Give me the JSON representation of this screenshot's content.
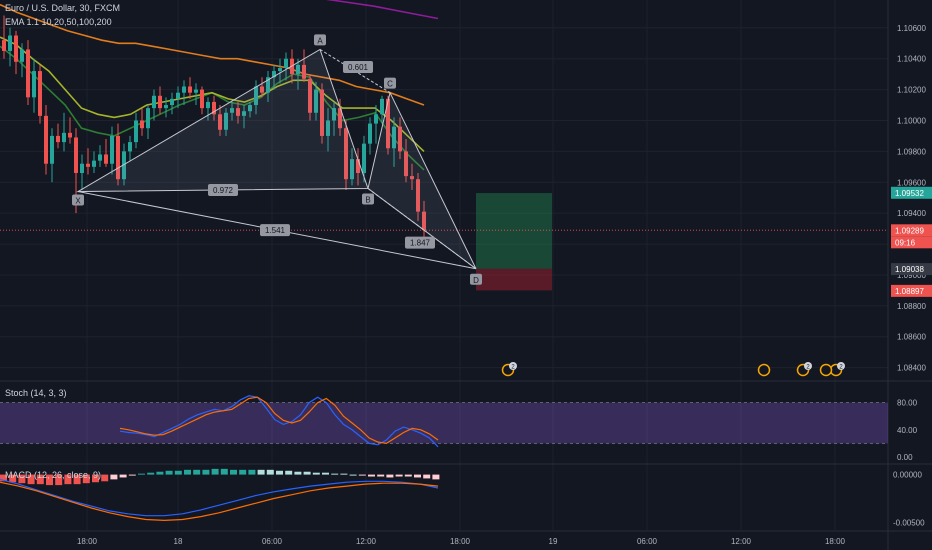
{
  "header": {
    "symbol": "Euro / U.S. Dollar, 30, FXCM",
    "indicator": "EMA 1.1 10,20,50,100,200"
  },
  "chart_data": [
    {
      "type": "candlestick",
      "title": "Euro / U.S. Dollar, 30, FXCM",
      "ylim": [
        1.0832,
        1.1078
      ],
      "y_ticks": [
        "1.10600",
        "1.10400",
        "1.10200",
        "1.10000",
        "1.09800",
        "1.09600",
        "1.09400",
        "1.09200",
        "1.09000",
        "1.08800",
        "1.08600",
        "1.08400"
      ],
      "x_ticks": [
        "18:00",
        "18",
        "06:00",
        "12:00",
        "18:00",
        "19",
        "06:00",
        "12:00",
        "18:00"
      ],
      "candles": [
        [
          1.1052,
          1.1068,
          1.104,
          1.1045
        ],
        [
          1.1045,
          1.106,
          1.1035,
          1.1055
        ],
        [
          1.1055,
          1.1058,
          1.103,
          1.1038
        ],
        [
          1.1038,
          1.105,
          1.1028,
          1.1046
        ],
        [
          1.1046,
          1.1052,
          1.101,
          1.1015
        ],
        [
          1.1015,
          1.104,
          1.1005,
          1.1032
        ],
        [
          1.1032,
          1.1036,
          1.0998,
          1.1003
        ],
        [
          1.1003,
          1.101,
          1.0965,
          1.0972
        ],
        [
          1.0972,
          1.0995,
          1.096,
          1.099
        ],
        [
          1.099,
          1.0998,
          1.0982,
          1.0986
        ],
        [
          1.0986,
          1.1005,
          1.098,
          1.0992
        ],
        [
          1.0992,
          1.1002,
          1.0985,
          1.0989
        ],
        [
          1.0989,
          1.0995,
          1.094,
          1.0966
        ],
        [
          1.0966,
          1.0978,
          1.0955,
          1.0972
        ],
        [
          1.0972,
          1.0982,
          1.0965,
          1.097
        ],
        [
          1.097,
          1.098,
          1.0966,
          1.0974
        ],
        [
          1.0974,
          1.0984,
          1.097,
          1.0978
        ],
        [
          1.0978,
          1.0988,
          1.097,
          1.0972
        ],
        [
          1.0972,
          1.0996,
          1.0965,
          1.099
        ],
        [
          1.099,
          1.0998,
          1.0958,
          1.0962
        ],
        [
          1.0962,
          1.0985,
          1.0958,
          1.098
        ],
        [
          1.098,
          1.099,
          1.0974,
          1.0986
        ],
        [
          1.0986,
          1.1005,
          1.0982,
          1.1
        ],
        [
          1.1,
          1.1008,
          1.099,
          1.0995
        ],
        [
          1.0995,
          1.101,
          1.0988,
          1.1008
        ],
        [
          1.1008,
          1.102,
          1.1,
          1.1016
        ],
        [
          1.1016,
          1.1022,
          1.1004,
          1.1008
        ],
        [
          1.1008,
          1.1015,
          1.1002,
          1.101
        ],
        [
          1.101,
          1.1018,
          1.1004,
          1.1014
        ],
        [
          1.1014,
          1.1022,
          1.1008,
          1.1018
        ],
        [
          1.1018,
          1.1026,
          1.101,
          1.1022
        ],
        [
          1.1022,
          1.1028,
          1.1014,
          1.1018
        ],
        [
          1.1018,
          1.1024,
          1.101,
          1.102
        ],
        [
          1.102,
          1.1022,
          1.1004,
          1.1008
        ],
        [
          1.1008,
          1.1015,
          1.1,
          1.1012
        ],
        [
          1.1012,
          1.1016,
          1.1,
          1.1004
        ],
        [
          1.1004,
          1.101,
          1.099,
          1.0994
        ],
        [
          1.0994,
          1.1008,
          1.099,
          1.1005
        ],
        [
          1.1005,
          1.1012,
          1.1,
          1.1008
        ],
        [
          1.1008,
          1.1012,
          1.0998,
          1.1003
        ],
        [
          1.1003,
          1.101,
          1.0995,
          1.1006
        ],
        [
          1.1006,
          1.1012,
          1.1002,
          1.101
        ],
        [
          1.101,
          1.1026,
          1.1004,
          1.1022
        ],
        [
          1.1022,
          1.1028,
          1.1015,
          1.1018
        ],
        [
          1.1018,
          1.1032,
          1.1012,
          1.1028
        ],
        [
          1.1028,
          1.1036,
          1.102,
          1.1032
        ],
        [
          1.1032,
          1.104,
          1.1024,
          1.1034
        ],
        [
          1.1034,
          1.1044,
          1.1026,
          1.104
        ],
        [
          1.104,
          1.1046,
          1.1024,
          1.103
        ],
        [
          1.103,
          1.104,
          1.102,
          1.1036
        ],
        [
          1.1036,
          1.1046,
          1.1025,
          1.1027
        ],
        [
          1.1027,
          1.103,
          1.1,
          1.1005
        ],
        [
          1.1005,
          1.1025,
          1.1,
          1.102
        ],
        [
          1.102,
          1.1024,
          1.0985,
          1.099
        ],
        [
          1.099,
          1.1008,
          1.098,
          1.1
        ],
        [
          1.1,
          1.1012,
          1.099,
          1.1008
        ],
        [
          1.1008,
          1.1014,
          1.099,
          1.0995
        ],
        [
          1.0995,
          1.1,
          1.0955,
          1.0962
        ],
        [
          1.0962,
          1.0982,
          1.0958,
          1.0975
        ],
        [
          1.0975,
          1.0982,
          1.0958,
          1.0966
        ],
        [
          1.0966,
          1.099,
          1.096,
          1.0985
        ],
        [
          1.0985,
          1.1002,
          1.0978,
          1.0998
        ],
        [
          1.0998,
          1.101,
          1.0985,
          1.1004
        ],
        [
          1.1004,
          1.1016,
          1.0998,
          1.1014
        ],
        [
          1.1014,
          1.1016,
          1.0978,
          1.0982
        ],
        [
          1.0982,
          1.1002,
          1.097,
          1.0996
        ],
        [
          1.0996,
          1.1002,
          1.0975,
          1.098
        ],
        [
          1.098,
          1.0988,
          1.096,
          1.0964
        ],
        [
          1.0964,
          1.0972,
          1.0955,
          1.0962
        ],
        [
          1.0962,
          1.0966,
          1.0935,
          1.0941
        ],
        [
          1.0941,
          1.0948,
          1.092,
          1.0929
        ]
      ],
      "ema_series": [
        {
          "name": "EMA 10",
          "color": "#2e7d32",
          "values": [
            1.1048,
            1.104,
            1.103,
            1.102,
            1.101,
            1.0995,
            1.0992,
            1.099,
            1.0995,
            1.1,
            1.1005,
            1.101,
            1.1014,
            1.1018,
            1.1012,
            1.101,
            1.1015,
            1.1024,
            1.103,
            1.1028,
            1.1012,
            1.1,
            1.1002,
            1.1005,
            1.099,
            1.0978,
            1.0968
          ]
        },
        {
          "name": "EMA 20",
          "color": "#a5b42a",
          "values": [
            1.1054,
            1.1049,
            1.104,
            1.1032,
            1.102,
            1.1008,
            1.1004,
            1.1002,
            1.1004,
            1.101,
            1.1012,
            1.1014,
            1.1016,
            1.1018,
            1.1014,
            1.1012,
            1.1016,
            1.1022,
            1.1026,
            1.1026,
            1.1016,
            1.1008,
            1.1008,
            1.1008,
            1.1,
            1.099,
            1.098
          ]
        },
        {
          "name": "EMA 50",
          "color": "#e27c1c",
          "values": [
            1.1075,
            1.107,
            1.1066,
            1.1062,
            1.1058,
            1.1055,
            1.1052,
            1.105,
            1.105,
            1.1048,
            1.1046,
            1.1044,
            1.1042,
            1.104,
            1.104,
            1.1038,
            1.1036,
            1.1034,
            1.103,
            1.1028,
            1.1026,
            1.1022,
            1.102,
            1.1018,
            1.1014,
            1.101
          ]
        },
        {
          "name": "EMA 100",
          "color": "#8e1c9c",
          "values": [
            1.108,
            1.1077,
            1.1074,
            1.107,
            1.1066
          ]
        }
      ],
      "pattern": {
        "points": [
          {
            "label": "X",
            "value": 1.0954
          },
          {
            "label": "A",
            "value": 1.1046
          },
          {
            "label": "B",
            "value": 1.0956
          },
          {
            "label": "C",
            "value": 1.1018
          },
          {
            "label": "D",
            "value": 1.0904
          }
        ],
        "ratios": [
          "0.972",
          "0.601",
          "1.541",
          "1.847"
        ]
      },
      "trade": {
        "entry": 1.0904,
        "target": 1.0953,
        "stop": 1.089
      },
      "price_labels": [
        {
          "text": "1.09532",
          "color": "#26a69a"
        },
        {
          "text": "1.09289",
          "color": "#ef5350"
        },
        {
          "text": "09:16",
          "color": "#ef5350"
        },
        {
          "text": "1.09038",
          "color": "#363a45"
        },
        {
          "text": "1.08897",
          "color": "#ef5350"
        }
      ],
      "event_badges": [
        "2",
        "2",
        "2"
      ]
    },
    {
      "type": "line",
      "title": "Stoch (14, 3, 3)",
      "ylim": [
        0,
        100
      ],
      "y_ticks": [
        "80.00",
        "40.00",
        "0.00"
      ],
      "band": [
        20,
        80
      ],
      "series": [
        {
          "color": "#2962ff",
          "values": [
            38,
            36,
            35,
            33,
            30,
            36,
            42,
            48,
            56,
            62,
            66,
            70,
            68,
            74,
            84,
            90,
            88,
            72,
            55,
            48,
            52,
            62,
            80,
            88,
            80,
            62,
            48,
            40,
            30,
            20,
            18,
            25,
            38,
            44,
            40,
            35,
            28,
            15
          ]
        },
        {
          "color": "#ff6d00",
          "values": [
            42,
            40,
            37,
            34,
            32,
            33,
            38,
            44,
            50,
            56,
            62,
            66,
            68,
            70,
            78,
            86,
            88,
            80,
            64,
            54,
            50,
            54,
            66,
            80,
            86,
            76,
            60,
            50,
            40,
            28,
            22,
            20,
            28,
            36,
            42,
            40,
            34,
            25
          ]
        }
      ]
    },
    {
      "type": "bar",
      "title": "MACD (12, 26, close, 9)",
      "ylim": [
        -0.0058,
        0.0009
      ],
      "y_ticks": [
        "0.00000",
        "-0.00500"
      ],
      "histogram": [
        -0.0007,
        -0.0008,
        -0.0009,
        -0.001,
        -0.001,
        -0.0011,
        -0.0011,
        -0.001,
        -0.001,
        -0.0009,
        -0.0008,
        -0.0007,
        -0.0005,
        -0.0003,
        -0.0001,
        0.0001,
        0.0002,
        0.0003,
        0.0004,
        0.0004,
        0.0005,
        0.0005,
        0.0005,
        0.0006,
        0.0006,
        0.0005,
        0.0005,
        0.0005,
        0.0005,
        0.0005,
        0.0004,
        0.0004,
        0.0003,
        0.0003,
        0.0002,
        0.0002,
        0.0001,
        0.0001,
        0.0,
        -0.0001,
        -0.0002,
        -0.0002,
        -0.0003,
        -0.0002,
        -0.0002,
        -0.0003,
        -0.0004,
        -0.0005
      ],
      "series": [
        {
          "color": "#2962ff",
          "values": [
            -0.0005,
            -0.001,
            -0.0016,
            -0.0022,
            -0.0028,
            -0.0033,
            -0.0038,
            -0.0041,
            -0.0043,
            -0.0043,
            -0.0041,
            -0.0037,
            -0.0032,
            -0.0027,
            -0.0022,
            -0.0018,
            -0.0015,
            -0.0012,
            -0.001,
            -0.0008,
            -0.0007,
            -0.0007,
            -0.0008,
            -0.001,
            -0.0014
          ]
        },
        {
          "color": "#ff6d00",
          "values": [
            -0.0008,
            -0.0012,
            -0.0017,
            -0.0023,
            -0.0029,
            -0.0035,
            -0.004,
            -0.0044,
            -0.0047,
            -0.0048,
            -0.0047,
            -0.0044,
            -0.004,
            -0.0035,
            -0.003,
            -0.0025,
            -0.0021,
            -0.0017,
            -0.0014,
            -0.0012,
            -0.001,
            -0.0009,
            -0.0009,
            -0.001,
            -0.0012
          ]
        }
      ]
    }
  ]
}
